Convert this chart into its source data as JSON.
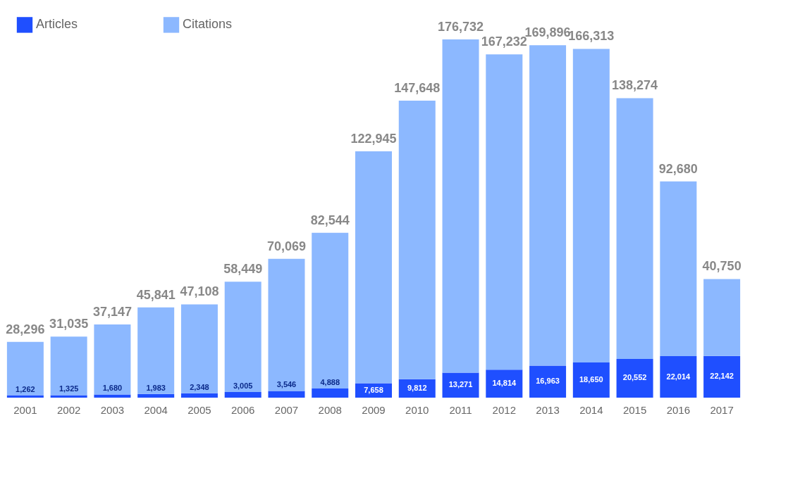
{
  "chart_data": {
    "type": "bar",
    "categories": [
      "2001",
      "2002",
      "2003",
      "2004",
      "2005",
      "2006",
      "2007",
      "2008",
      "2009",
      "2010",
      "2011",
      "2012",
      "2013",
      "2014",
      "2015",
      "2016",
      "2017"
    ],
    "series": [
      {
        "name": "Articles",
        "color": "#1f4fff",
        "values": [
          1262,
          1325,
          1680,
          1983,
          2348,
          3005,
          3546,
          4888,
          7658,
          9812,
          13271,
          14814,
          16963,
          18650,
          20552,
          22014,
          22142
        ],
        "value_labels": [
          "1,262",
          "1,325",
          "1,680",
          "1,983",
          "2,348",
          "3,005",
          "3,546",
          "4,888",
          "7,658",
          "9,812",
          "13,271",
          "14,814",
          "16,963",
          "18,650",
          "20,552",
          "22,014",
          "22,142"
        ]
      },
      {
        "name": "Citations",
        "color": "#8cb8ff",
        "values": [
          28296,
          31035,
          37147,
          45841,
          47108,
          58449,
          70069,
          82544,
          122945,
          147648,
          176732,
          167232,
          169896,
          166313,
          138274,
          92680,
          40750
        ],
        "value_labels": [
          "28,296",
          "31,035",
          "37,147",
          "45,841",
          "47,108",
          "58,449",
          "70,069",
          "82,544",
          "122,945",
          "147,648",
          "176,732",
          "167,232",
          "169,896",
          "166,313",
          "138,274",
          "92,680",
          "40,750"
        ]
      }
    ],
    "stacked": true,
    "legend": "top left",
    "grid": false
  }
}
